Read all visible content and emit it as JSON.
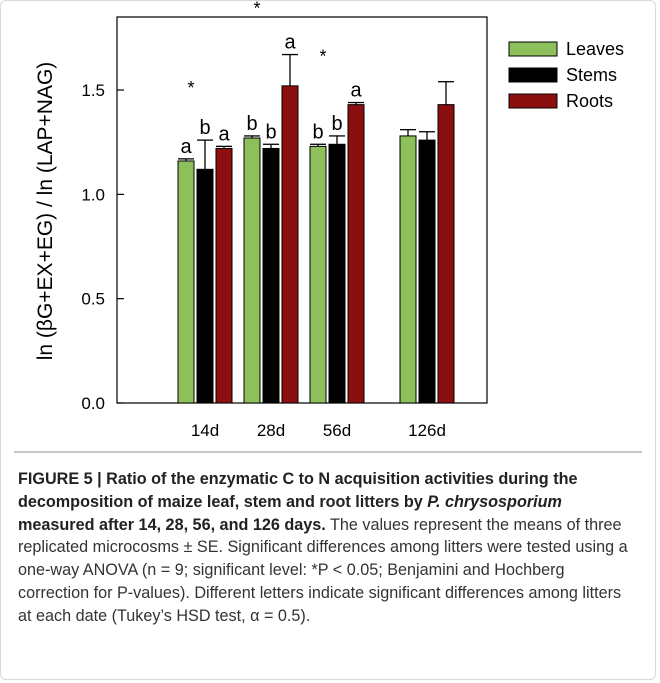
{
  "chart_data": {
    "type": "bar",
    "categories": [
      "14d",
      "28d",
      "56d",
      "126d"
    ],
    "ylabel": "ln (βG+EX+EG) / ln (LAP+NAG)",
    "ylim": [
      0,
      1.85
    ],
    "yticks": [
      "0.0",
      "0.5",
      "1.0",
      "1.5"
    ],
    "legend_position": "top-right",
    "series": [
      {
        "name": "Leaves",
        "color": "#8dbf5a",
        "values": [
          1.16,
          1.27,
          1.23,
          1.28
        ],
        "errors": [
          0.01,
          0.01,
          0.01,
          0.03
        ]
      },
      {
        "name": "Stems",
        "color": "#000000",
        "values": [
          1.12,
          1.22,
          1.24,
          1.26
        ],
        "errors": [
          0.14,
          0.02,
          0.04,
          0.04
        ]
      },
      {
        "name": "Roots",
        "color": "#8b0f0f",
        "values": [
          1.22,
          1.52,
          1.43,
          1.43
        ],
        "errors": [
          0.01,
          0.15,
          0.01,
          0.11
        ]
      }
    ],
    "bar_labels": [
      [
        "a",
        "b",
        "a"
      ],
      [
        "b",
        "b",
        "a"
      ],
      [
        "b",
        "b",
        "a"
      ],
      [
        "",
        "",
        ""
      ]
    ],
    "significance_marks": [
      "*",
      "*",
      "*",
      ""
    ]
  },
  "caption": {
    "title_part1": "FIGURE 5 | Ratio of the enzymatic C to N acquisition activities during the decomposition of maize leaf, stem and root litters by",
    "species": "P. chrysosporium",
    "title_part2": "measured after 14, 28, 56, and 126 days.",
    "body": "The values represent the means of three replicated microcosms ± SE. Significant differences among litters were tested using a one-way ANOVA (n = 9; significant level: *P < 0.05; Benjamini and Hochberg correction for P-values). Different letters indicate significant differences among litters at each date (Tukey’s HSD test, α = 0.5)."
  }
}
